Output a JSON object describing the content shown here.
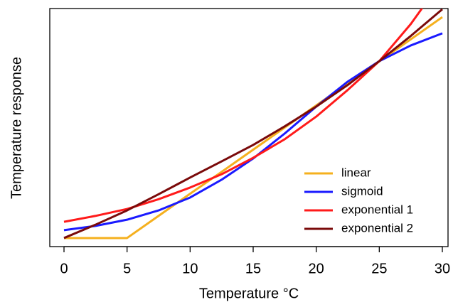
{
  "chart_data": {
    "type": "line",
    "x_label": "Temperature °C",
    "y_label": "Temperature response",
    "x": [
      0,
      2.5,
      5,
      7.5,
      10,
      12.5,
      15,
      17.5,
      20,
      22.5,
      25,
      27.5,
      30
    ],
    "series": [
      {
        "name": "linear",
        "color": "#f5b01e",
        "values": [
          3.6,
          3.6,
          3.6,
          12.9,
          22.2,
          31.4,
          40.7,
          50.0,
          59.3,
          68.6,
          77.8,
          87.1,
          96.4
        ]
      },
      {
        "name": "sigmoid",
        "color": "#1a1aff",
        "values": [
          6.9,
          8.7,
          11.3,
          15.2,
          20.6,
          28.1,
          37.0,
          47.5,
          58.8,
          69.3,
          77.9,
          84.5,
          89.6
        ]
      },
      {
        "name": "exponential 1",
        "color": "#ff1a1a",
        "values": [
          10.4,
          12.9,
          15.8,
          19.9,
          24.8,
          30.4,
          37.3,
          45.1,
          54.6,
          65.8,
          77.9,
          93.5,
          112
        ]
      },
      {
        "name": "exponential 2",
        "color": "#7a0a0a",
        "values": [
          3.6,
          9.2,
          15.2,
          22.0,
          29.0,
          35.8,
          42.7,
          50.5,
          58.8,
          67.9,
          77.9,
          88.5,
          99.7
        ]
      }
    ],
    "xlim": [
      0,
      30
    ],
    "xticks": [
      0,
      5,
      10,
      15,
      20,
      25,
      30
    ],
    "ylim": [
      0,
      100
    ],
    "legend": "bottom-right"
  }
}
